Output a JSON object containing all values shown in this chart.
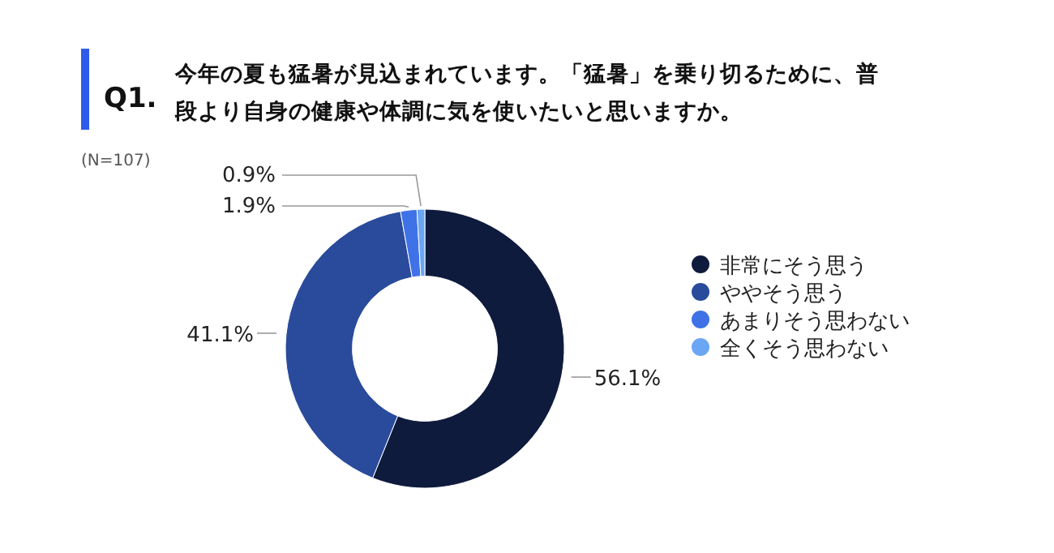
{
  "chart_data": {
    "type": "donut",
    "title": "Q1.",
    "subtitle": "今年の夏も猛暑が見込まれています。「猛暑」を乗り切るために、普段より自身の健康や体調に気を使いたいと思いますか。",
    "annotations": [
      "(N=107)"
    ],
    "categories": [
      "非常にそう思う",
      "ややそう思う",
      "あまりそう思わない",
      "全くそう思わない"
    ],
    "values": [
      56.1,
      41.1,
      1.9,
      0.9
    ],
    "colors": [
      "#0f1b3d",
      "#2a4b9b",
      "#3f72e6",
      "#6aa6f4"
    ],
    "value_labels": [
      "56.1%",
      "41.1%",
      "1.9%",
      "0.9%"
    ],
    "legend": "right"
  }
}
